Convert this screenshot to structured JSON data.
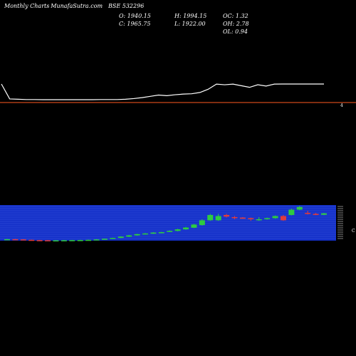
{
  "header": {
    "brand": "Monthly Charts",
    "site": "- MunafaSutra.com",
    "symbol": "BSE 532296"
  },
  "ohlc": {
    "open": "O: 1940.15",
    "high": "H: 1994.15",
    "oc": "OC: 1.32",
    "close": "C: 1965.75",
    "low": "L: 1922.00",
    "oh": "OH: 2.78",
    "ol": "OL: 0.94"
  },
  "colors": {
    "background": "#000000",
    "price_line": "#ffffff",
    "divider": "#ff5a1f",
    "volume_band": "#1430c8",
    "up_candle": "#2ecc40",
    "down_candle": "#e23b3b"
  },
  "chart_data": [
    {
      "type": "line",
      "series": [
        {
          "values": [
            1500,
            250,
            245,
            240,
            240,
            238,
            238,
            238,
            238,
            238,
            238,
            238,
            240,
            240,
            240,
            245,
            255,
            270,
            290,
            310,
            300,
            315,
            325,
            330,
            350,
            400,
            480,
            470,
            480,
            455,
            430,
            470,
            450,
            480,
            570,
            540,
            530,
            540,
            545,
            545
          ]
        }
      ]
    },
    {
      "type": "candlestick",
      "series": [
        {
          "open": [
            250,
            252,
            250,
            246,
            243,
            242,
            241,
            241,
            242,
            243,
            244,
            246,
            250,
            256,
            264,
            275,
            288,
            300,
            306,
            314,
            320,
            330,
            345,
            360,
            385,
            430,
            430,
            480,
            460,
            455,
            450,
            430,
            440,
            450,
            470,
            480,
            530,
            500,
            490,
            482
          ],
          "close": [
            252,
            250,
            247,
            244,
            242,
            241,
            241,
            242,
            243,
            244,
            246,
            250,
            256,
            264,
            276,
            288,
            300,
            306,
            314,
            318,
            330,
            345,
            362,
            390,
            430,
            480,
            470,
            465,
            455,
            452,
            440,
            440,
            450,
            470,
            430,
            530,
            555,
            492,
            482,
            495
          ],
          "high": [
            254,
            254,
            252,
            248,
            245,
            244,
            243,
            244,
            245,
            246,
            248,
            252,
            258,
            266,
            280,
            292,
            303,
            310,
            318,
            322,
            335,
            350,
            368,
            395,
            440,
            490,
            490,
            490,
            470,
            460,
            455,
            460,
            455,
            475,
            480,
            540,
            565,
            520,
            500,
            500
          ],
          "low": [
            248,
            248,
            245,
            242,
            240,
            240,
            239,
            239,
            240,
            241,
            242,
            244,
            248,
            254,
            262,
            272,
            285,
            296,
            302,
            310,
            318,
            326,
            340,
            356,
            380,
            425,
            425,
            455,
            440,
            445,
            425,
            425,
            435,
            445,
            425,
            475,
            525,
            485,
            478,
            478
          ]
        }
      ]
    }
  ]
}
